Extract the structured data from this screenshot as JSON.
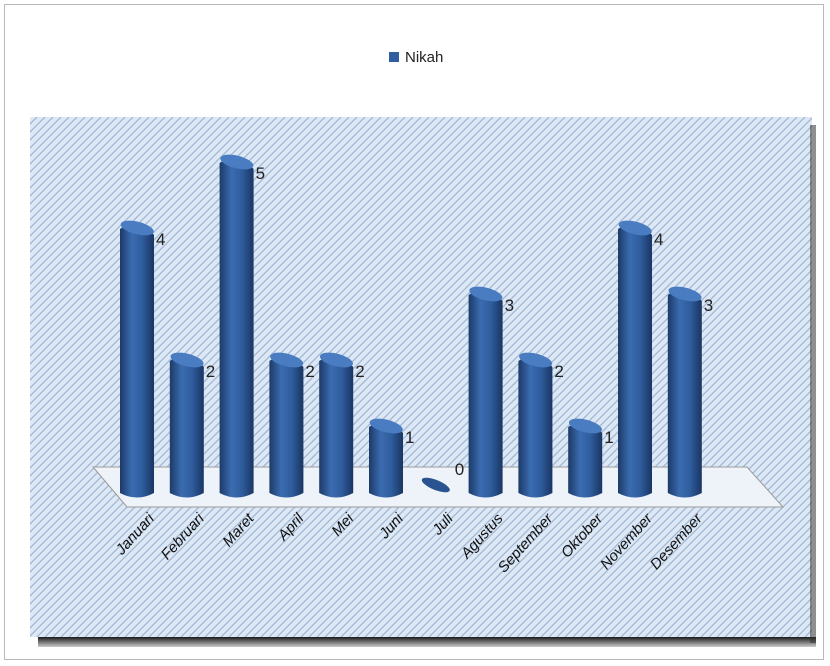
{
  "chart_data": {
    "type": "bar",
    "title": "",
    "xlabel": "",
    "ylabel": "",
    "categories": [
      "Januari",
      "Februari",
      "Maret",
      "April",
      "Mei",
      "Juni",
      "Juli",
      "Agustus",
      "September",
      "Oktober",
      "November",
      "Desember"
    ],
    "series": [
      {
        "name": "Nikah",
        "values": [
          4,
          2,
          5,
          2,
          2,
          1,
          0,
          3,
          2,
          1,
          4,
          3
        ]
      }
    ],
    "ylim": [
      0,
      5
    ],
    "grid": false,
    "legend": "top-center",
    "data_labels": true,
    "colors": {
      "bar": "#2f5d9e",
      "bar_dark": "#1c3a68",
      "bar_light": "#5b87c4",
      "plot_background": "#d7e4f2",
      "floor": "#e8eef6"
    }
  }
}
